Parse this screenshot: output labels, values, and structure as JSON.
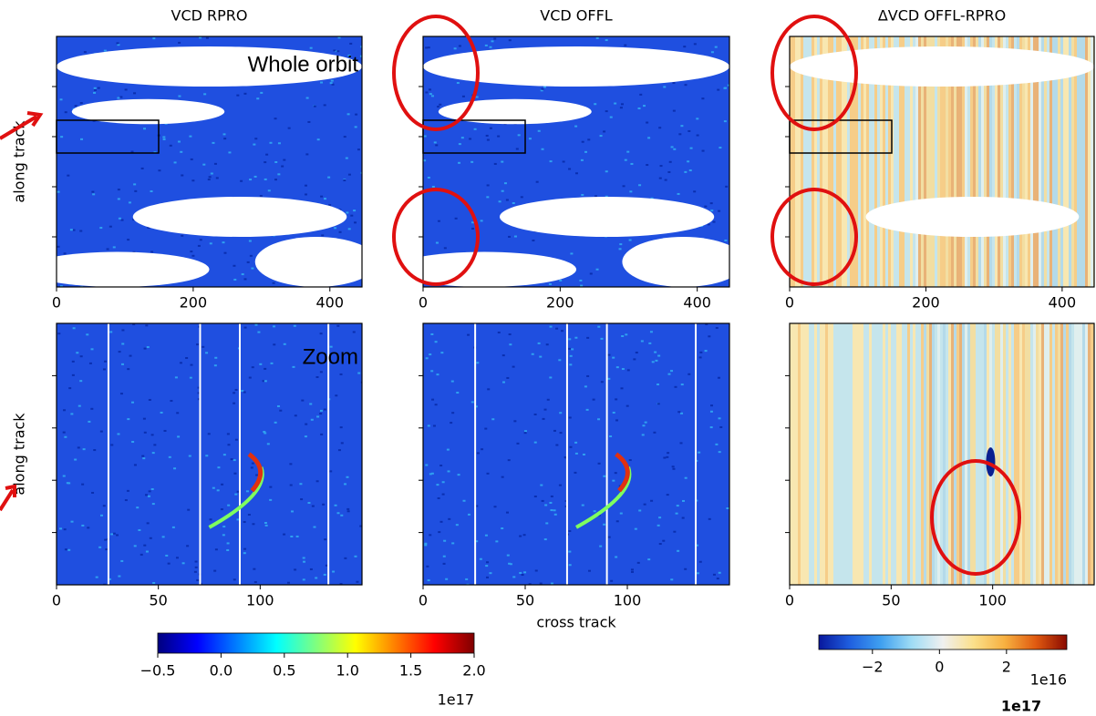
{
  "chart_data": [
    {
      "type": "image",
      "title": "VCD RPRO",
      "xlim": [
        0,
        447
      ],
      "xticks": [
        0,
        200,
        400
      ],
      "ylabel": "along track",
      "annotation": "Whole orbit",
      "colormap": "jet"
    },
    {
      "type": "image",
      "title": "VCD OFFL",
      "xlim": [
        0,
        447
      ],
      "xticks": [
        0,
        200,
        400
      ],
      "colormap": "jet"
    },
    {
      "type": "image",
      "title": "ΔVCD OFFL-RPRO",
      "xlim": [
        0,
        447
      ],
      "xticks": [
        0,
        200,
        400
      ],
      "colormap": "diverging"
    },
    {
      "type": "image",
      "xlim": [
        0,
        150
      ],
      "xticks": [
        0,
        50,
        100
      ],
      "ylabel": "along track",
      "annotation": "Zoom",
      "colormap": "jet"
    },
    {
      "type": "image",
      "xlim": [
        0,
        150
      ],
      "xticks": [
        0,
        50,
        100
      ],
      "xlabel": "cross track",
      "colormap": "jet"
    },
    {
      "type": "image",
      "xlim": [
        0,
        150
      ],
      "xticks": [
        0,
        50,
        100
      ],
      "colormap": "diverging"
    },
    {
      "type": "colorbar",
      "xlim": [
        -0.5,
        2.0
      ],
      "xticks": [
        {
          "value": -0.5,
          "label": "−0.5"
        },
        {
          "value": 0,
          "label": "0.0"
        },
        {
          "value": 0.5,
          "label": "0.5"
        },
        {
          "value": 1,
          "label": "1.0"
        },
        {
          "value": 1.5,
          "label": "1.5"
        },
        {
          "value": 2,
          "label": "2.0"
        }
      ],
      "offset": "1e17",
      "colors": [
        "#00007f",
        "#0000ff",
        "#007fff",
        "#00ffff",
        "#7fff7f",
        "#ffff00",
        "#ff7f00",
        "#ff0000",
        "#7f0000"
      ]
    },
    {
      "type": "colorbar",
      "xlim": [
        -3.6,
        3.8
      ],
      "xticks": [
        {
          "value": -2,
          "label": "−2"
        },
        0,
        2
      ],
      "offset": "1e16",
      "note": "1e17",
      "colors": [
        "#08179c",
        "#1f5fe0",
        "#3fa0f0",
        "#9fdcf5",
        "#f0f0f0",
        "#fbe08a",
        "#f7b040",
        "#e05a10",
        "#8a0a00"
      ]
    }
  ]
}
